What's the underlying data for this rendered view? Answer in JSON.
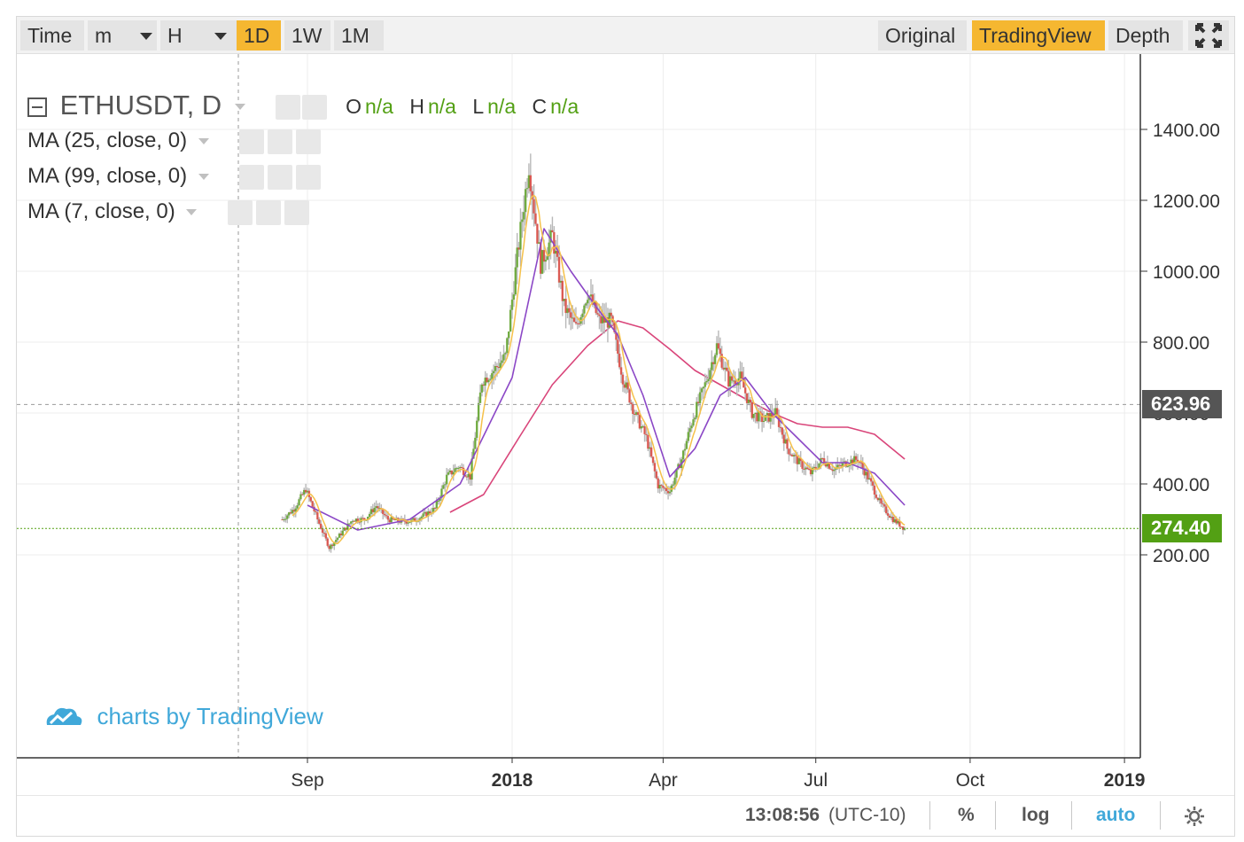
{
  "toolbar": {
    "time_label": "Time",
    "minutes_label": "m",
    "hours_label": "H",
    "buttons": [
      "1D",
      "1W",
      "1M"
    ],
    "active_interval": "1D",
    "views": [
      "Original",
      "TradingView",
      "Depth"
    ],
    "active_view": "TradingView"
  },
  "legend": {
    "symbol": "ETHUSDT, D",
    "ohlc": [
      {
        "key": "O",
        "value": "n/a"
      },
      {
        "key": "H",
        "value": "n/a"
      },
      {
        "key": "L",
        "value": "n/a"
      },
      {
        "key": "C",
        "value": "n/a"
      }
    ],
    "studies": [
      "MA (25, close, 0)",
      "MA (99, close, 0)",
      "MA (7, close, 0)"
    ]
  },
  "branding": "charts by TradingView",
  "status": {
    "time": "13:08:56",
    "timezone": "(UTC-10)",
    "percent": "%",
    "log": "log",
    "auto": "auto"
  },
  "colors": {
    "accent": "#f5b731",
    "up": "#53a014",
    "down": "#e0362c",
    "ma25": "#8b47c6",
    "ma99": "#d9457a",
    "ma7": "#f5c14a",
    "last_price": "#53a014",
    "crosshair_price": "#555555",
    "brand": "#40a8d9"
  },
  "chart_data": {
    "type": "candlestick",
    "symbol": "ETHUSDT",
    "interval": "D",
    "y_ticks": [
      "1400.00",
      "1200.00",
      "1000.00",
      "800.00",
      "400.00",
      "200.00"
    ],
    "ylim": [
      60,
      1480
    ],
    "x_ticks": [
      "Sep",
      "2018",
      "Oct",
      "Apr",
      "Jul",
      "2019"
    ],
    "last_price": "274.40",
    "crosshair_price": "623.96",
    "weekly_close": [
      [
        "2017-08-17",
        300
      ],
      [
        "2017-08-24",
        330
      ],
      [
        "2017-08-31",
        385
      ],
      [
        "2017-09-07",
        300
      ],
      [
        "2017-09-14",
        220
      ],
      [
        "2017-09-21",
        260
      ],
      [
        "2017-09-28",
        300
      ],
      [
        "2017-10-05",
        300
      ],
      [
        "2017-10-12",
        338
      ],
      [
        "2017-10-19",
        300
      ],
      [
        "2017-10-26",
        295
      ],
      [
        "2017-11-02",
        295
      ],
      [
        "2017-11-09",
        310
      ],
      [
        "2017-11-16",
        330
      ],
      [
        "2017-11-23",
        420
      ],
      [
        "2017-11-30",
        450
      ],
      [
        "2017-12-07",
        420
      ],
      [
        "2017-12-14",
        690
      ],
      [
        "2017-12-21",
        720
      ],
      [
        "2017-12-28",
        760
      ],
      [
        "2018-01-04",
        1040
      ],
      [
        "2018-01-11",
        1300
      ],
      [
        "2018-01-18",
        1020
      ],
      [
        "2018-01-25",
        1100
      ],
      [
        "2018-02-01",
        900
      ],
      [
        "2018-02-08",
        840
      ],
      [
        "2018-02-15",
        940
      ],
      [
        "2018-02-22",
        860
      ],
      [
        "2018-03-01",
        860
      ],
      [
        "2018-03-08",
        700
      ],
      [
        "2018-03-15",
        600
      ],
      [
        "2018-03-22",
        530
      ],
      [
        "2018-03-29",
        395
      ],
      [
        "2018-04-05",
        380
      ],
      [
        "2018-04-12",
        470
      ],
      [
        "2018-04-19",
        590
      ],
      [
        "2018-04-26",
        680
      ],
      [
        "2018-05-03",
        790
      ],
      [
        "2018-05-10",
        690
      ],
      [
        "2018-05-17",
        700
      ],
      [
        "2018-05-24",
        600
      ],
      [
        "2018-05-31",
        580
      ],
      [
        "2018-06-07",
        600
      ],
      [
        "2018-06-14",
        500
      ],
      [
        "2018-06-21",
        460
      ],
      [
        "2018-06-28",
        430
      ],
      [
        "2018-07-05",
        470
      ],
      [
        "2018-07-12",
        440
      ],
      [
        "2018-07-19",
        460
      ],
      [
        "2018-07-26",
        470
      ],
      [
        "2018-08-02",
        410
      ],
      [
        "2018-08-09",
        340
      ],
      [
        "2018-08-16",
        300
      ],
      [
        "2018-08-23",
        274
      ]
    ],
    "ma25_weekly": [
      [
        "2017-09-01",
        340
      ],
      [
        "2017-10-01",
        270
      ],
      [
        "2017-11-01",
        300
      ],
      [
        "2017-12-01",
        400
      ],
      [
        "2018-01-01",
        700
      ],
      [
        "2018-01-20",
        1120
      ],
      [
        "2018-02-05",
        1000
      ],
      [
        "2018-02-20",
        900
      ],
      [
        "2018-03-05",
        820
      ],
      [
        "2018-03-20",
        650
      ],
      [
        "2018-04-05",
        420
      ],
      [
        "2018-04-20",
        500
      ],
      [
        "2018-05-05",
        650
      ],
      [
        "2018-05-20",
        700
      ],
      [
        "2018-06-05",
        600
      ],
      [
        "2018-06-20",
        530
      ],
      [
        "2018-07-05",
        460
      ],
      [
        "2018-07-20",
        460
      ],
      [
        "2018-08-05",
        430
      ],
      [
        "2018-08-23",
        340
      ]
    ],
    "ma99_weekly": [
      [
        "2017-11-25",
        320
      ],
      [
        "2017-12-15",
        370
      ],
      [
        "2018-01-05",
        530
      ],
      [
        "2018-01-25",
        680
      ],
      [
        "2018-02-15",
        790
      ],
      [
        "2018-03-05",
        860
      ],
      [
        "2018-03-20",
        840
      ],
      [
        "2018-04-05",
        780
      ],
      [
        "2018-04-20",
        720
      ],
      [
        "2018-05-05",
        680
      ],
      [
        "2018-05-20",
        640
      ],
      [
        "2018-06-05",
        600
      ],
      [
        "2018-06-20",
        570
      ],
      [
        "2018-07-05",
        560
      ],
      [
        "2018-07-20",
        560
      ],
      [
        "2018-08-05",
        540
      ],
      [
        "2018-08-23",
        470
      ]
    ]
  }
}
